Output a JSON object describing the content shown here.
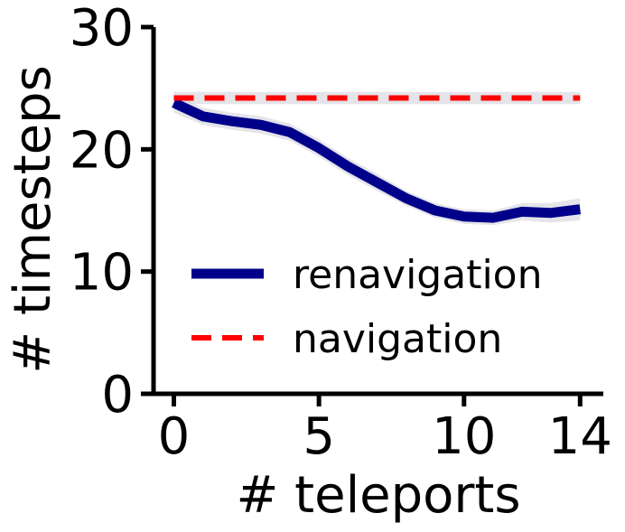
{
  "chart_data": {
    "type": "line",
    "xlabel": "# teleports",
    "ylabel": "# timesteps",
    "xlim": [
      -0.7,
      14.8
    ],
    "ylim": [
      0,
      30
    ],
    "xticks": [
      0,
      5,
      10,
      14
    ],
    "yticks": [
      0,
      10,
      20,
      30
    ],
    "grid": false,
    "legend_position": "lower-left",
    "series": [
      {
        "name": "renavigation",
        "color": "#00008b",
        "style": "solid",
        "x": [
          0,
          1,
          2,
          3,
          4,
          5,
          6,
          7,
          8,
          9,
          10,
          11,
          12,
          13,
          14
        ],
        "y": [
          23.8,
          22.7,
          22.3,
          22.0,
          21.4,
          20.1,
          18.6,
          17.3,
          16.0,
          15.0,
          14.5,
          14.4,
          14.9,
          14.8,
          15.1
        ],
        "band": [
          0.8,
          0.7,
          0.7,
          0.7,
          0.7,
          0.7,
          0.7,
          0.7,
          0.6,
          0.6,
          0.6,
          0.6,
          0.7,
          0.8,
          0.9
        ]
      },
      {
        "name": "navigation",
        "color": "#ff0000",
        "style": "dashed",
        "x": [
          0,
          14
        ],
        "y": [
          24.2,
          24.2
        ],
        "band": [
          0.5,
          0.5
        ]
      }
    ]
  }
}
